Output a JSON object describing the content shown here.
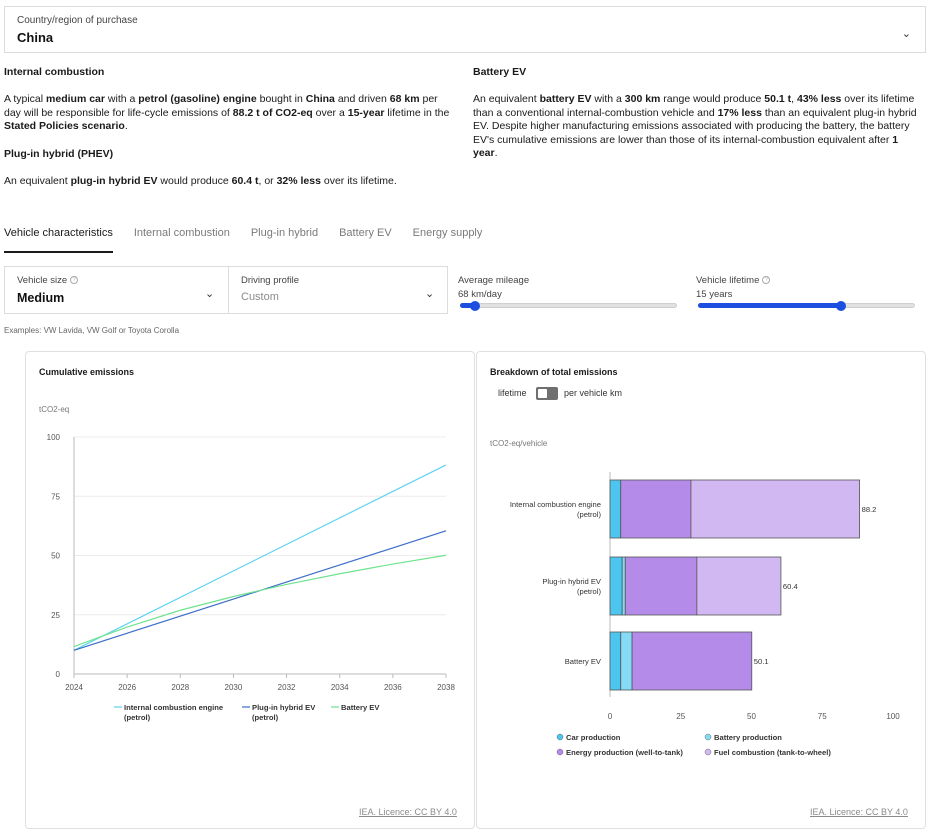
{
  "country": {
    "label": "Country/region of purchase",
    "value": "China"
  },
  "summary": {
    "ice": {
      "heading": "Internal combustion",
      "parts": [
        {
          "t": "A typical ",
          "b": false
        },
        {
          "t": "medium car",
          "b": true
        },
        {
          "t": " with a ",
          "b": false
        },
        {
          "t": "petrol (gasoline) engine",
          "b": true
        },
        {
          "t": " bought in ",
          "b": false
        },
        {
          "t": "China",
          "b": true
        },
        {
          "t": " and driven ",
          "b": false
        },
        {
          "t": "68 km",
          "b": true
        },
        {
          "t": " per day will be responsible for life-cycle emissions of ",
          "b": false
        },
        {
          "t": "88.2 t of CO2-eq",
          "b": true
        },
        {
          "t": " over a ",
          "b": false
        },
        {
          "t": "15-year",
          "b": true
        },
        {
          "t": " lifetime in the ",
          "b": false
        },
        {
          "t": "Stated Policies scenario",
          "b": true
        },
        {
          "t": ".",
          "b": false
        }
      ]
    },
    "phev": {
      "heading": "Plug-in hybrid (PHEV)",
      "parts": [
        {
          "t": "An equivalent ",
          "b": false
        },
        {
          "t": "plug-in hybrid EV",
          "b": true
        },
        {
          "t": " would produce ",
          "b": false
        },
        {
          "t": "60.4 t",
          "b": true
        },
        {
          "t": ", or ",
          "b": false
        },
        {
          "t": "32% less",
          "b": true
        },
        {
          "t": " over its lifetime.",
          "b": false
        }
      ]
    },
    "bev": {
      "heading": "Battery EV",
      "parts": [
        {
          "t": "An equivalent ",
          "b": false
        },
        {
          "t": "battery EV",
          "b": true
        },
        {
          "t": " with a ",
          "b": false
        },
        {
          "t": "300 km",
          "b": true
        },
        {
          "t": " range would produce ",
          "b": false
        },
        {
          "t": "50.1 t",
          "b": true
        },
        {
          "t": ", ",
          "b": false
        },
        {
          "t": "43% less",
          "b": true
        },
        {
          "t": " over its lifetime than a conventional internal-combustion vehicle and ",
          "b": false
        },
        {
          "t": "17% less",
          "b": true
        },
        {
          "t": " than an equivalent plug-in hybrid EV. Despite higher manufacturing emissions associated with producing the battery, the battery EV's cumulative emissions are lower than those of its internal-combustion equivalent after ",
          "b": false
        },
        {
          "t": "1 year",
          "b": true
        },
        {
          "t": ".",
          "b": false
        }
      ]
    }
  },
  "tabs": [
    "Vehicle characteristics",
    "Internal combustion",
    "Plug-in hybrid",
    "Battery EV",
    "Energy supply"
  ],
  "active_tab": 0,
  "controls": {
    "vehicle_size": {
      "label": "Vehicle size",
      "value": "Medium",
      "help_icon": "question-icon"
    },
    "driving_profile": {
      "label": "Driving profile",
      "placeholder": "Custom"
    },
    "mileage": {
      "label": "Average mileage",
      "value": "68 km/day",
      "fraction": 0.07
    },
    "lifetime": {
      "label": "Vehicle lifetime",
      "value": "15 years",
      "fraction": 0.66,
      "help_icon": "question-icon"
    },
    "examples": "Examples: VW Lavida, VW Golf or Toyota Corolla"
  },
  "credit": "IEA. Licence: CC BY 4.0",
  "colors": {
    "ice_line": "#5ed3f0",
    "phev_line": "#3b6ec9",
    "bev_line": "#6fe38f",
    "car_production": "#4cc6ee",
    "battery_production": "#85dbf5",
    "energy_production": "#b58bea",
    "fuel_combustion": "#d2b8f2",
    "accent": "#1c4fe0"
  },
  "chart_data": [
    {
      "type": "line",
      "title": "Cumulative emissions",
      "ylabel": "tCO2-eq",
      "ylim": [
        0,
        100
      ],
      "yticks": [
        0,
        25,
        50,
        75,
        100
      ],
      "xlim": [
        2024,
        2038
      ],
      "xticks": [
        2024,
        2026,
        2028,
        2030,
        2032,
        2034,
        2036,
        2038
      ],
      "grid": true,
      "legend": "bottom",
      "series": [
        {
          "name": "Internal combustion engine (petrol)",
          "color_key": "ice_line",
          "x": [
            2024,
            2038
          ],
          "y": [
            10,
            88.2
          ]
        },
        {
          "name": "Plug-in hybrid EV (petrol)",
          "color_key": "phev_line",
          "x": [
            2024,
            2038
          ],
          "y": [
            10,
            60.4
          ]
        },
        {
          "name": "Battery EV",
          "color_key": "bev_line",
          "x": [
            2024,
            2026,
            2028,
            2030,
            2032,
            2034,
            2036,
            2038
          ],
          "y": [
            11.6,
            19.8,
            26.9,
            32.7,
            37.8,
            42.3,
            46.4,
            50.1
          ]
        }
      ]
    },
    {
      "type": "bar",
      "orientation": "horizontal",
      "stacked": true,
      "title": "Breakdown of total emissions",
      "toggle": {
        "left": "lifetime",
        "right": "per vehicle km",
        "selected": "lifetime"
      },
      "xlabel": "tCO2-eq/vehicle",
      "xlim": [
        0,
        100
      ],
      "xticks": [
        0,
        25,
        50,
        75,
        100
      ],
      "legend": "bottom",
      "categories": [
        "Internal combustion engine (petrol)",
        "Plug-in hybrid EV (petrol)",
        "Battery EV"
      ],
      "totals": [
        "88.2",
        "60.4",
        "50.1"
      ],
      "series": [
        {
          "name": "Car production",
          "color_key": "car_production",
          "values": [
            3.8,
            4.3,
            3.8
          ]
        },
        {
          "name": "Battery production",
          "color_key": "battery_production",
          "values": [
            0,
            1.1,
            4.0
          ]
        },
        {
          "name": "Energy production (well-to-tank)",
          "color_key": "energy_production",
          "values": [
            24.8,
            25.3,
            42.3
          ]
        },
        {
          "name": "Fuel combustion (tank-to-wheel)",
          "color_key": "fuel_combustion",
          "values": [
            59.6,
            29.7,
            0
          ]
        }
      ]
    }
  ]
}
